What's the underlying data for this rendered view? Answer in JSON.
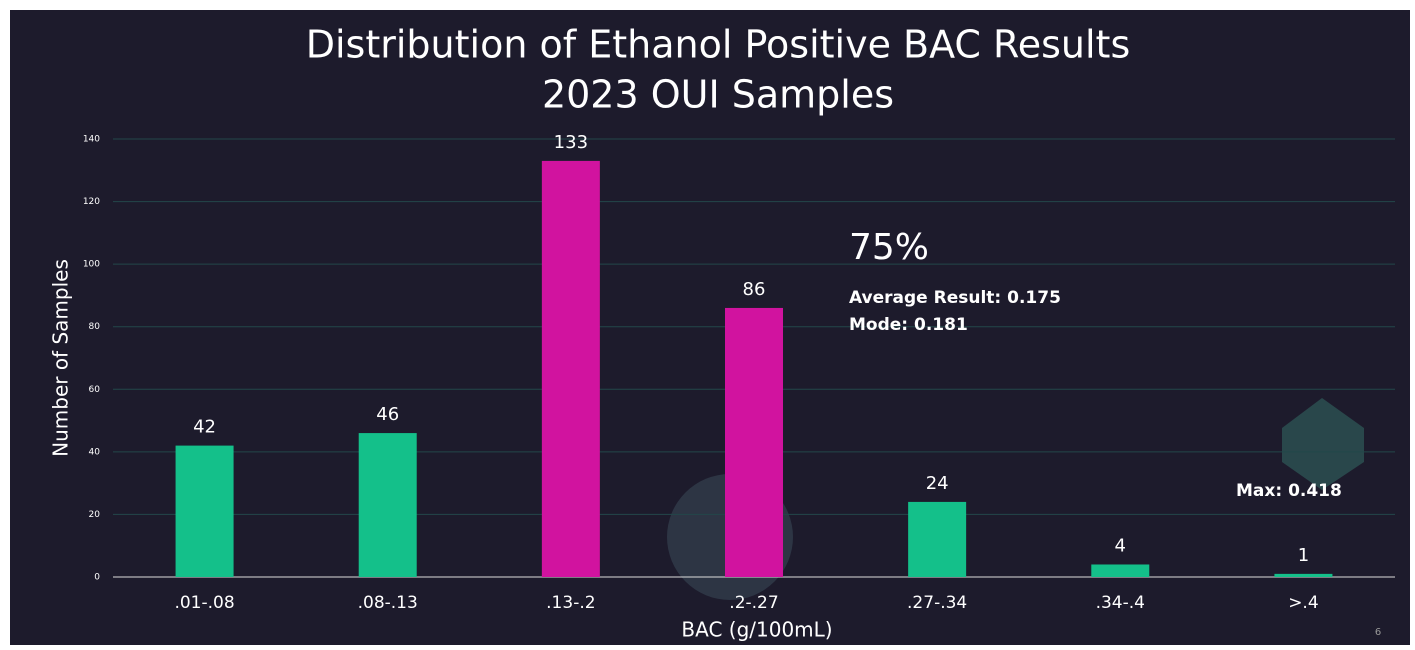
{
  "chart_data": {
    "type": "bar",
    "title": "Distribution of Ethanol Positive BAC Results",
    "subtitle": "2023 OUI Samples",
    "x_label": "BAC (g/100mL)",
    "y_label": "Number of Samples",
    "categories": [
      ".01-.08",
      ".08-.13",
      ".13-.2",
      ".2-.27",
      ".27-.34",
      ".34-.4",
      ">.4"
    ],
    "values": [
      42,
      46,
      133,
      86,
      24,
      4,
      1
    ],
    "colors": [
      "#14c08a",
      "#14c08a",
      "#d1139f",
      "#d1139f",
      "#14c08a",
      "#14c08a",
      "#14c08a"
    ],
    "ylim": [
      0,
      140
    ],
    "yticks": [
      0,
      20,
      40,
      60,
      80,
      100,
      120,
      140
    ],
    "grid": true,
    "annotations": [
      "75%",
      "Average Result: 0.175",
      "Mode: 0.181",
      "Max: 0.418"
    ],
    "page_number": "6"
  }
}
